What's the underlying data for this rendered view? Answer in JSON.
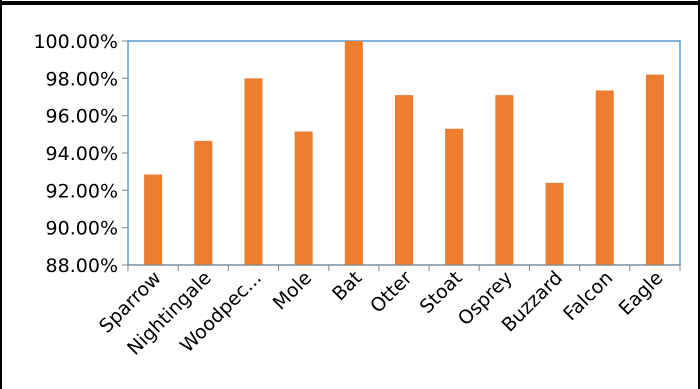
{
  "chart_data": {
    "type": "bar",
    "categories": [
      "Sparrow",
      "Nightingale",
      "Woodpec...",
      "Mole",
      "Bat",
      "Otter",
      "Stoat",
      "Osprey",
      "Buzzard",
      "Falcon",
      "Eagle"
    ],
    "values": [
      92.85,
      94.65,
      98.0,
      95.15,
      100.0,
      97.1,
      95.3,
      97.1,
      92.4,
      97.35,
      98.2
    ],
    "title": "",
    "xlabel": "",
    "ylabel": "",
    "ylim": [
      88,
      100
    ],
    "yticks": [
      88,
      90,
      92,
      94,
      96,
      98,
      100
    ],
    "ytick_labels": [
      "88.00%",
      "90.00%",
      "92.00%",
      "94.00%",
      "96.00%",
      "98.00%",
      "100.00%"
    ],
    "grid": false,
    "legend": "none",
    "colors": {
      "bar": "#ED7D31",
      "plot_border": "#5B9BD5",
      "axis": "#868686",
      "frame": "#000000"
    }
  }
}
